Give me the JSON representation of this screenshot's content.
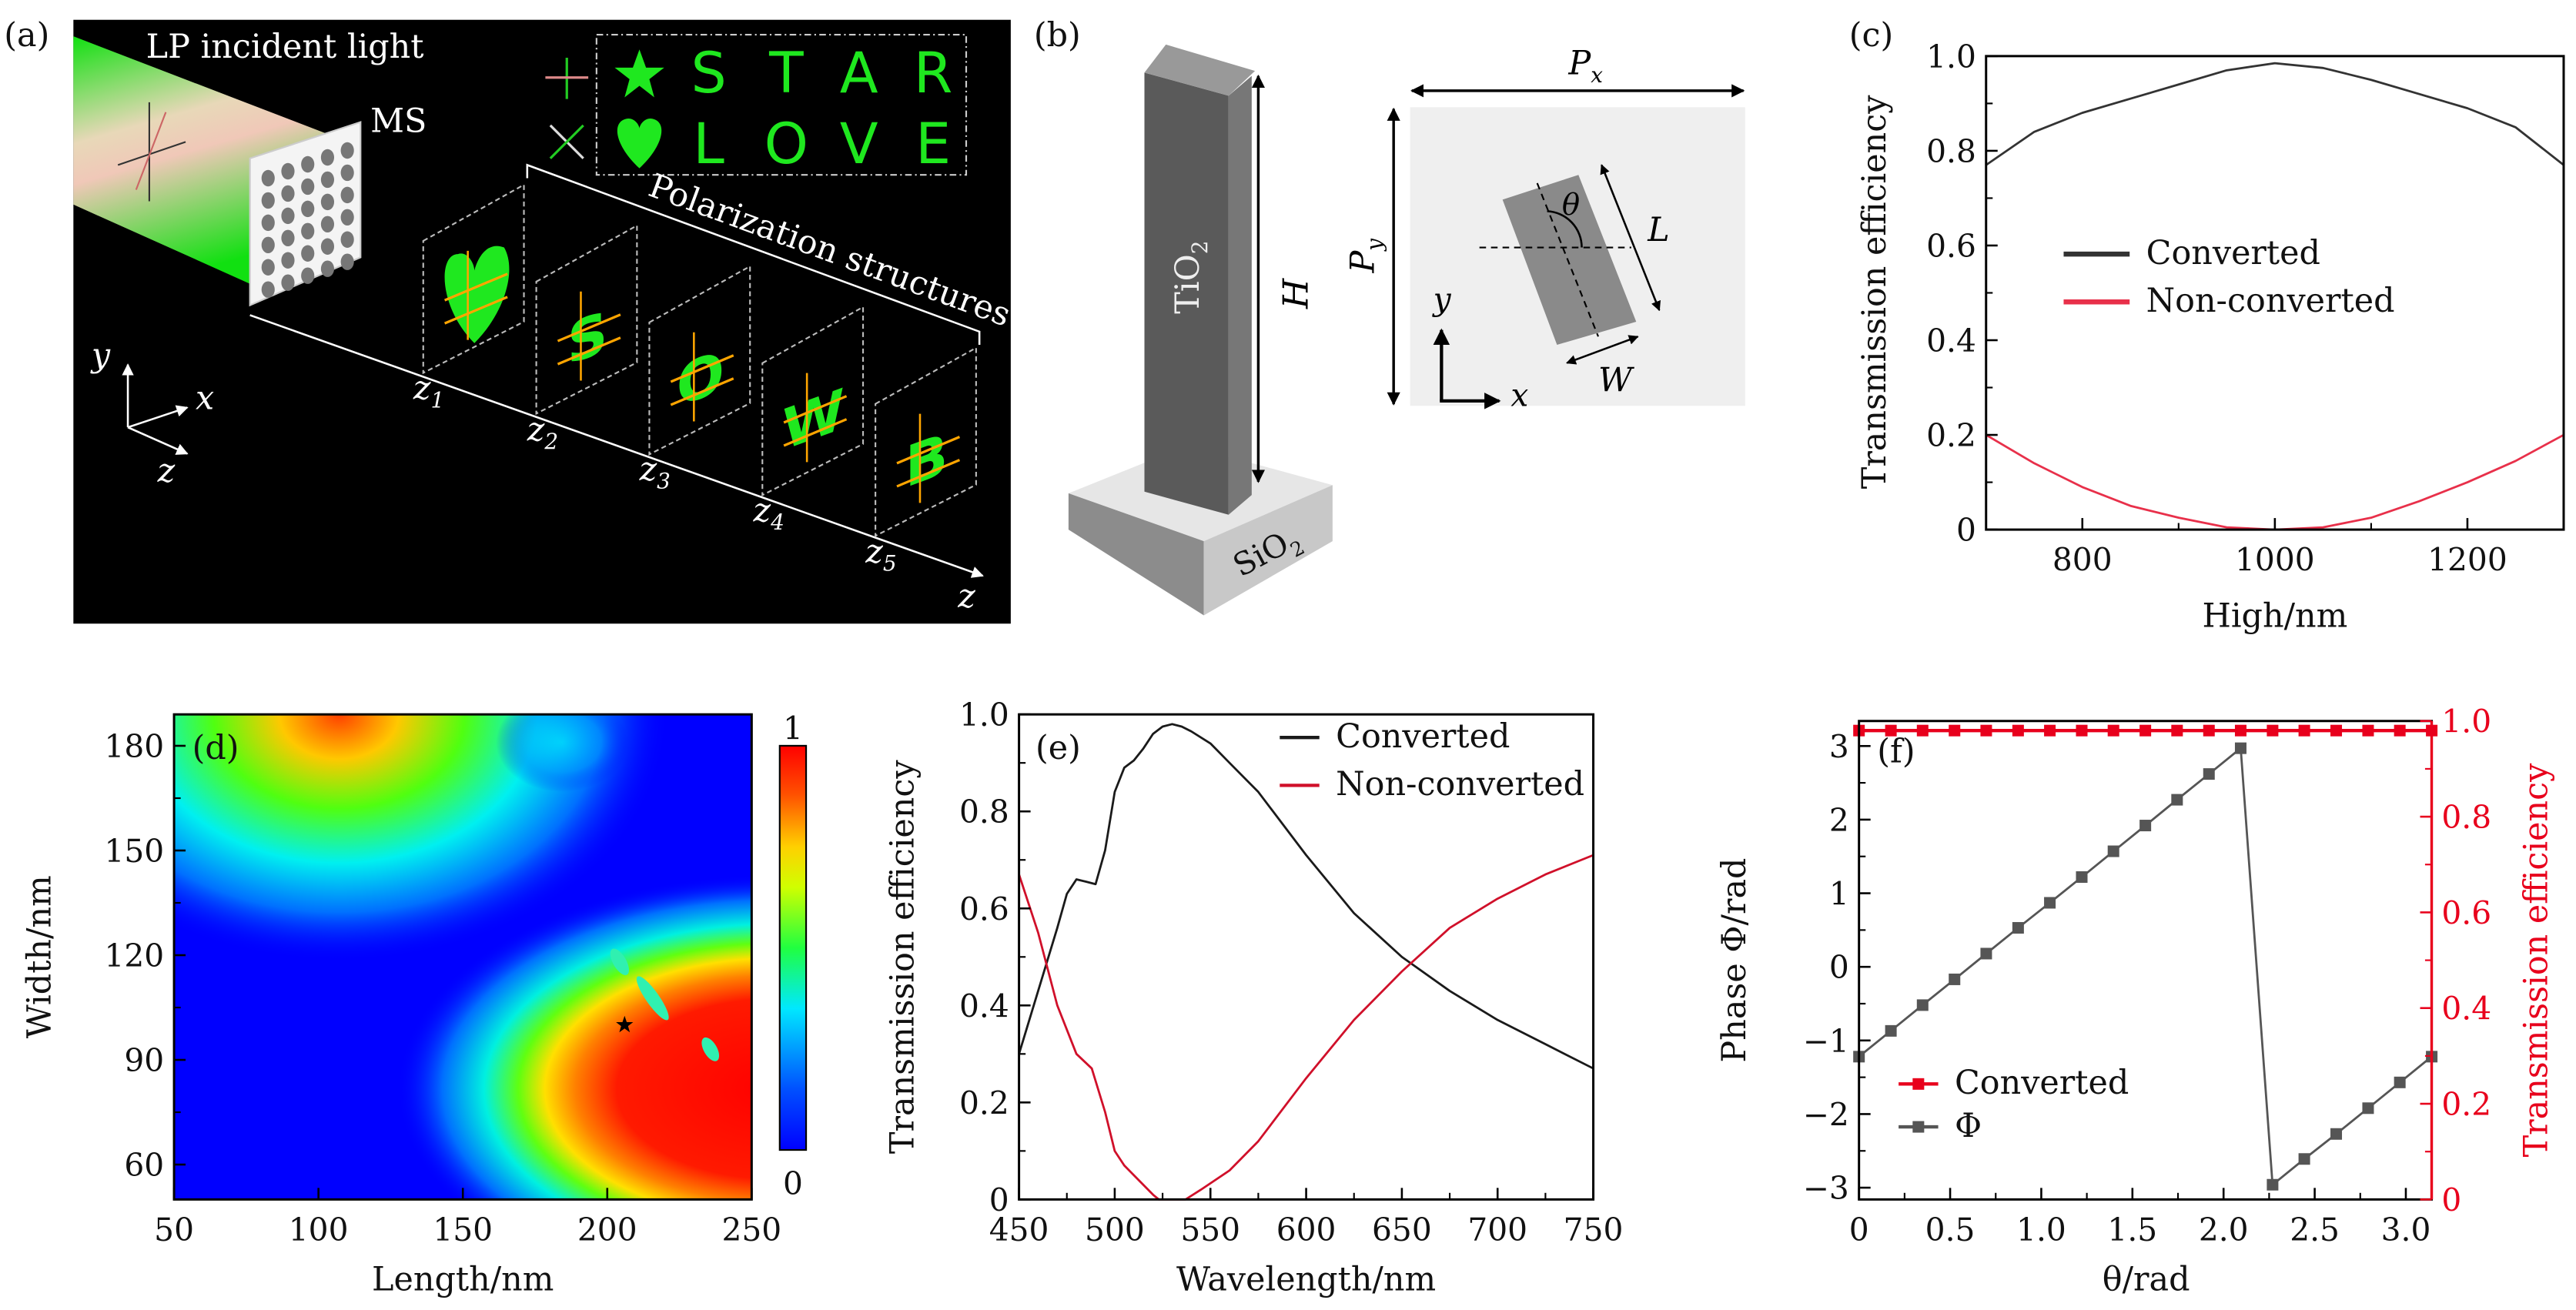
{
  "panel_labels": {
    "a": "(a)",
    "b": "(b)",
    "c": "(c)",
    "d": "(d)",
    "e": "(e)",
    "f": "(f)"
  },
  "panel_a": {
    "title": "LP incident light",
    "ms_label": "MS",
    "star_row": [
      "S",
      "T",
      "A",
      "R"
    ],
    "love_row": [
      "L",
      "O",
      "V",
      "E"
    ],
    "bracket_label": "Polarization structures",
    "z_base": "z",
    "z_subscripts": [
      "1",
      "2",
      "3",
      "4",
      "5"
    ],
    "axis_z": "z",
    "frame_letters": [
      "S",
      "O",
      "W",
      "B"
    ],
    "coord_axes": {
      "x": "x",
      "y": "y",
      "z": "z"
    },
    "colors": {
      "beam": "#19e619",
      "letters": "#1fe81f",
      "arrows": "#ffa500",
      "background": "#000000"
    }
  },
  "panel_b": {
    "pillar_material": "TiO",
    "pillar_sub": "2",
    "substrate_material": "SiO",
    "substrate_sub": "2",
    "height_label": "H",
    "px_base": "P",
    "px_sub": "x",
    "py_base": "P",
    "py_sub": "y",
    "theta": "θ",
    "length_label": "L",
    "width_label": "W",
    "axis_x": "x",
    "axis_y": "y"
  },
  "chart_data": [
    {
      "panel": "c",
      "type": "line",
      "xlabel": "High/nm",
      "ylabel": "Transmission efficiency",
      "xlim": [
        700,
        1300
      ],
      "ylim": [
        0,
        1
      ],
      "xticks": [
        800,
        1000,
        1200
      ],
      "xtick_labels": [
        "800",
        "1000",
        "1200"
      ],
      "xminor": [
        900,
        1100
      ],
      "yticks": [
        0,
        0.2,
        0.4,
        0.6,
        0.8,
        1.0
      ],
      "ytick_labels": [
        "0",
        "0.2",
        "0.4",
        "0.6",
        "0.8",
        "1.0"
      ],
      "yminor": [
        0.1,
        0.3,
        0.5,
        0.7,
        0.9
      ],
      "legend": "center-left",
      "grid": false,
      "series": [
        {
          "name": "Converted",
          "color": "#333333",
          "x": [
            700,
            750,
            800,
            850,
            900,
            950,
            1000,
            1050,
            1100,
            1150,
            1200,
            1250,
            1300
          ],
          "y": [
            0.77,
            0.84,
            0.88,
            0.91,
            0.94,
            0.97,
            0.985,
            0.975,
            0.95,
            0.92,
            0.89,
            0.85,
            0.77
          ]
        },
        {
          "name": "Non-converted",
          "color": "#e8304a",
          "x": [
            700,
            750,
            800,
            850,
            900,
            950,
            1000,
            1050,
            1100,
            1150,
            1200,
            1250,
            1300
          ],
          "y": [
            0.2,
            0.14,
            0.09,
            0.05,
            0.025,
            0.005,
            0,
            0.005,
            0.025,
            0.06,
            0.1,
            0.145,
            0.2
          ]
        }
      ]
    },
    {
      "panel": "d",
      "type": "heatmap",
      "xlabel": "Length/nm",
      "ylabel": "Width/nm",
      "xlim": [
        50,
        250
      ],
      "ylim": [
        50,
        189
      ],
      "xticks": [
        50,
        100,
        150,
        200,
        250
      ],
      "xtick_labels": [
        "50",
        "100",
        "150",
        "200",
        "250"
      ],
      "xminor": [],
      "yticks": [
        60,
        90,
        120,
        150,
        180
      ],
      "ytick_labels": [
        "60",
        "90",
        "120",
        "150",
        "180"
      ],
      "yminor": [
        75,
        105,
        135,
        165
      ],
      "colormap": "jet",
      "colorbar": {
        "min": 0,
        "max": 1,
        "min_label": "0",
        "max_label": "1"
      },
      "marker": {
        "symbol": "star",
        "x": 206,
        "y": 100
      }
    },
    {
      "panel": "e",
      "type": "line",
      "xlabel": "Wavelength/nm",
      "ylabel": "Transmission efficiency",
      "xlim": [
        450,
        750
      ],
      "ylim": [
        0,
        1
      ],
      "xticks": [
        450,
        500,
        550,
        600,
        650,
        700,
        750
      ],
      "xtick_labels": [
        "450",
        "500",
        "550",
        "600",
        "650",
        "700",
        "750"
      ],
      "xminor": [
        475,
        525,
        575,
        625,
        675,
        725
      ],
      "yticks": [
        0,
        0.2,
        0.4,
        0.6,
        0.8,
        1.0
      ],
      "ytick_labels": [
        "0",
        "0.2",
        "0.4",
        "0.6",
        "0.8",
        "1.0"
      ],
      "yminor": [
        0.1,
        0.3,
        0.5,
        0.7,
        0.9
      ],
      "legend": "top-right",
      "grid": false,
      "series": [
        {
          "name": "Converted",
          "color": "#1a1a1a",
          "x": [
            450,
            460,
            470,
            475,
            480,
            485,
            490,
            495,
            500,
            505,
            510,
            515,
            520,
            525,
            530,
            535,
            540,
            550,
            560,
            575,
            600,
            625,
            650,
            675,
            700,
            725,
            750
          ],
          "y": [
            0.3,
            0.43,
            0.56,
            0.63,
            0.66,
            0.655,
            0.65,
            0.72,
            0.84,
            0.89,
            0.905,
            0.93,
            0.96,
            0.975,
            0.98,
            0.975,
            0.965,
            0.94,
            0.9,
            0.84,
            0.71,
            0.59,
            0.5,
            0.43,
            0.37,
            0.32,
            0.27
          ]
        },
        {
          "name": "Non-converted",
          "color": "#d0102a",
          "x": [
            450,
            460,
            470,
            480,
            488,
            495,
            500,
            505,
            510,
            515,
            520,
            523,
            537,
            545,
            560,
            575,
            600,
            625,
            650,
            675,
            700,
            725,
            750
          ],
          "y": [
            0.67,
            0.55,
            0.4,
            0.3,
            0.27,
            0.18,
            0.1,
            0.07,
            0.05,
            0.03,
            0.01,
            0,
            0,
            0.02,
            0.06,
            0.12,
            0.25,
            0.37,
            0.47,
            0.56,
            0.62,
            0.67,
            0.71
          ]
        }
      ]
    },
    {
      "panel": "f",
      "type": "line",
      "xlabel": "θ/rad",
      "ylabel": "Phase Φ/rad",
      "y2label": "Transmission efficiency",
      "xlim": [
        0,
        3.1416
      ],
      "ylim": [
        -3.16,
        3.34
      ],
      "y2lim": [
        0,
        1
      ],
      "xticks": [
        0,
        0.5,
        1.0,
        1.5,
        2.0,
        2.5,
        3.0
      ],
      "xtick_labels": [
        "0",
        "0.5",
        "1.0",
        "1.5",
        "2.0",
        "2.5",
        "3.0"
      ],
      "xminor": [
        0.25,
        0.75,
        1.25,
        1.75,
        2.25,
        2.75
      ],
      "yticks": [
        -3,
        -2,
        -1,
        0,
        1,
        2,
        3
      ],
      "ytick_labels": [
        "−3",
        "−2",
        "−1",
        "0",
        "1",
        "2",
        "3"
      ],
      "yminor": [
        -2.5,
        -1.5,
        -0.5,
        0.5,
        1.5,
        2.5
      ],
      "y2ticks": [
        0,
        0.2,
        0.4,
        0.6,
        0.8,
        1.0
      ],
      "y2tick_labels": [
        "0",
        "0.2",
        "0.4",
        "0.6",
        "0.8",
        "1.0"
      ],
      "y2minor": [
        0.1,
        0.3,
        0.5,
        0.7,
        0.9
      ],
      "y2color": "#e8001c",
      "legend": "bottom-left",
      "grid": false,
      "series": [
        {
          "name": "Converted",
          "color": "#e8001c",
          "marker": "square",
          "axis": "right",
          "x": [
            0,
            0.175,
            0.349,
            0.524,
            0.698,
            0.873,
            1.047,
            1.222,
            1.396,
            1.571,
            1.745,
            1.92,
            2.094,
            2.269,
            2.443,
            2.618,
            2.793,
            2.967,
            3.142
          ],
          "y": [
            0.98,
            0.98,
            0.98,
            0.98,
            0.98,
            0.98,
            0.98,
            0.98,
            0.98,
            0.98,
            0.98,
            0.98,
            0.98,
            0.98,
            0.98,
            0.98,
            0.98,
            0.98,
            0.98
          ]
        },
        {
          "name": "Φ",
          "color": "#555555",
          "marker": "square",
          "axis": "left",
          "x": [
            0,
            0.175,
            0.349,
            0.524,
            0.698,
            0.873,
            1.047,
            1.222,
            1.396,
            1.571,
            1.745,
            1.92,
            2.094,
            2.269,
            2.443,
            2.618,
            2.793,
            2.967,
            3.142
          ],
          "y": [
            -1.22,
            -0.87,
            -0.52,
            -0.17,
            0.18,
            0.53,
            0.87,
            1.22,
            1.57,
            1.92,
            2.27,
            2.62,
            2.97,
            -2.96,
            -2.61,
            -2.27,
            -1.92,
            -1.57,
            -1.22
          ]
        }
      ]
    }
  ]
}
